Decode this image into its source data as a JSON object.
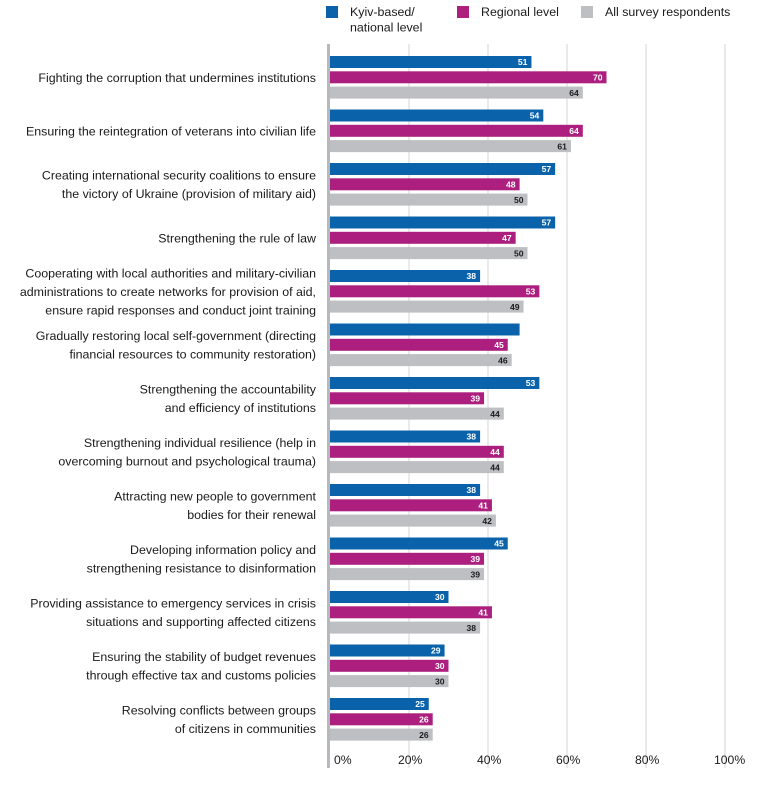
{
  "chart_data": {
    "type": "bar",
    "orientation": "horizontal",
    "xlim": [
      0,
      100
    ],
    "x_ticks": [
      "0%",
      "20%",
      "40%",
      "60%",
      "80%",
      "100%"
    ],
    "grid": true,
    "legend_position": "top",
    "categories": [
      [
        "Fighting the corruption that undermines institutions"
      ],
      [
        "Ensuring the reintegration of veterans into civilian life"
      ],
      [
        "Creating international security coalitions to ensure",
        "the victory of Ukraine (provision of military aid)"
      ],
      [
        "Strengthening the rule of law"
      ],
      [
        "Cooperating with local authorities and military-civilian",
        "administrations to create networks for provision of aid,",
        "ensure rapid responses and conduct joint training"
      ],
      [
        "Gradually restoring local self-government (directing",
        "financial resources to community restoration)"
      ],
      [
        "Strengthening the accountability",
        "and efficiency of institutions"
      ],
      [
        "Strengthening individual resilience (help in",
        "overcoming burnout and psychological trauma)"
      ],
      [
        "Attracting new people to government",
        "bodies for their renewal"
      ],
      [
        "Developing information policy and",
        "strengthening resistance to disinformation"
      ],
      [
        "Providing assistance to emergency services in crisis",
        "situations and supporting affected citizens"
      ],
      [
        "Ensuring the stability of budget revenues",
        "through effective tax and customs policies"
      ],
      [
        "Resolving conflicts between groups",
        "of citizens in communities"
      ]
    ],
    "series": [
      {
        "name": "Kyiv-based/ national level",
        "legend_lines": [
          "Kyiv-based/",
          "national level"
        ],
        "color": "#0a63aa",
        "label_color": "#ffffff",
        "values": [
          51,
          54,
          57,
          57,
          38,
          48,
          53,
          38,
          38,
          45,
          30,
          29,
          25
        ],
        "value_labels": [
          "51",
          "54",
          "57",
          "57",
          "38",
          "",
          "53",
          "38",
          "38",
          "45",
          "30",
          "29",
          "25"
        ]
      },
      {
        "name": "Regional level",
        "legend_lines": [
          "Regional level"
        ],
        "color": "#ac1f7e",
        "label_color": "#ffffff",
        "values": [
          70,
          64,
          48,
          47,
          53,
          45,
          39,
          44,
          41,
          39,
          41,
          30,
          26
        ],
        "value_labels": [
          "70",
          "64",
          "48",
          "47",
          "53",
          "45",
          "39",
          "44",
          "41",
          "39",
          "41",
          "30",
          "26"
        ]
      },
      {
        "name": "All survey respondents",
        "legend_lines": [
          "All survey respondents"
        ],
        "color": "#bdbfc3",
        "label_color": "#1a1a1a",
        "values": [
          64,
          61,
          50,
          50,
          49,
          46,
          44,
          44,
          42,
          39,
          38,
          30,
          26
        ],
        "value_labels": [
          "64",
          "61",
          "50",
          "50",
          "49",
          "46",
          "44",
          "44",
          "42",
          "39",
          "38",
          "30",
          "26"
        ]
      }
    ]
  }
}
